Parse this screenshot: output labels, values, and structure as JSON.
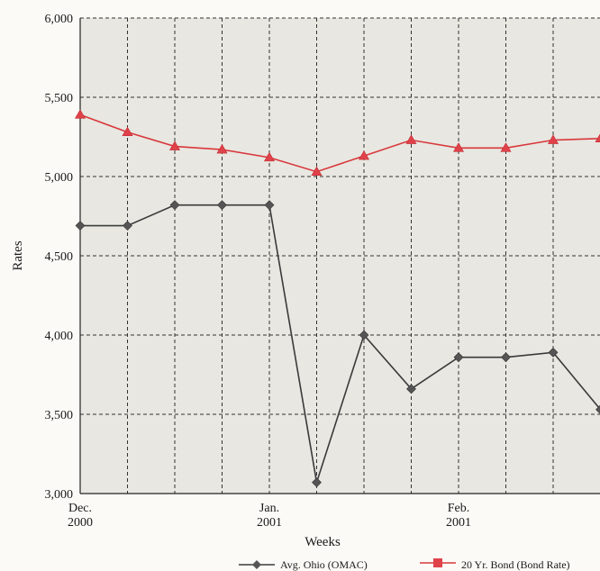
{
  "chart_data": {
    "type": "line",
    "xlabel": "Weeks",
    "ylabel": "Rates",
    "ylim": [
      3000,
      6000
    ],
    "y_ticks": [
      "6,000",
      "5,500",
      "5,000",
      "4,500",
      "4,000",
      "3,500",
      "3,000"
    ],
    "y_tick_values": [
      6000,
      5500,
      5000,
      4500,
      4000,
      3500,
      3000
    ],
    "x_tick_labels": [
      {
        "index": 0,
        "line1": "Dec.",
        "line2": "2000"
      },
      {
        "index": 4,
        "line1": "Jan.",
        "line2": "2001"
      },
      {
        "index": 8,
        "line1": "Feb.",
        "line2": "2001"
      }
    ],
    "grid": true,
    "legend_position": "bottom",
    "series": [
      {
        "name": "Avg. Ohio (OMAC)",
        "color": "#3a3a3a",
        "marker": "diamond",
        "values": [
          4690,
          4690,
          4820,
          4820,
          4820,
          3070,
          4000,
          3660,
          3860,
          3860,
          3890,
          3530
        ]
      },
      {
        "name": "20 Yr. Bond (Bond Rate)",
        "color": "#d9383c",
        "marker": "triangle",
        "values": [
          5390,
          5280,
          5190,
          5170,
          5120,
          5030,
          5130,
          5230,
          5180,
          5180,
          5230,
          5240
        ]
      }
    ]
  }
}
